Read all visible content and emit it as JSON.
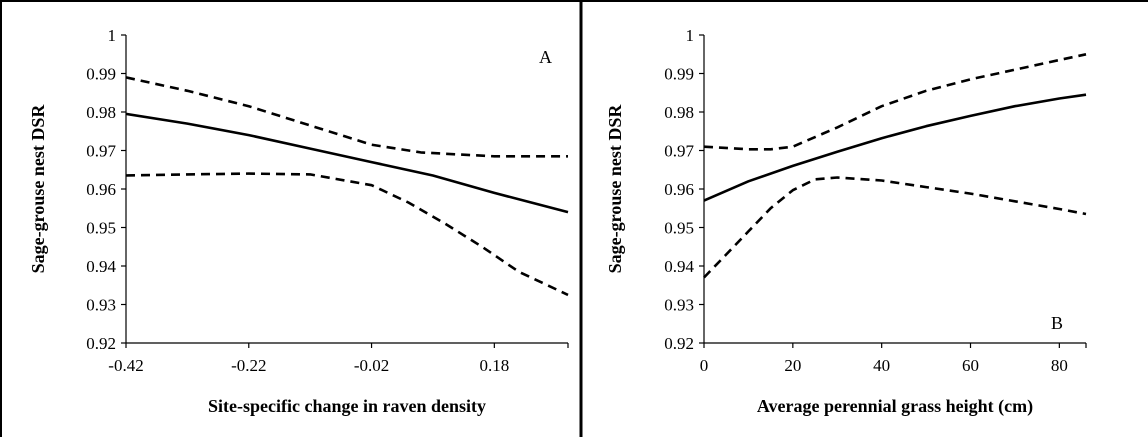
{
  "chart_data": [
    {
      "type": "line",
      "panel_label": "A",
      "xlabel": "Site-specific change in raven density",
      "ylabel": "Sage-grouse nest DSR",
      "xlim": [
        -0.42,
        0.3
      ],
      "ylim": [
        0.92,
        1.0
      ],
      "xticks": [
        -0.42,
        -0.22,
        -0.02,
        0.18
      ],
      "xtick_labels": [
        "-0.42",
        "-0.22",
        "-0.02",
        "0.18"
      ],
      "yticks": [
        0.92,
        0.93,
        0.94,
        0.95,
        0.96,
        0.97,
        0.98,
        0.99,
        1.0
      ],
      "ytick_labels": [
        "0.92",
        "0.93",
        "0.94",
        "0.95",
        "0.96",
        "0.97",
        "0.98",
        "0.99",
        "1"
      ],
      "grid": false,
      "legend": "none",
      "series": [
        {
          "role": "estimate",
          "style": "solid",
          "x": [
            -0.42,
            -0.32,
            -0.22,
            -0.12,
            -0.02,
            0.08,
            0.18,
            0.24,
            0.3
          ],
          "y": [
            0.9795,
            0.977,
            0.974,
            0.9705,
            0.967,
            0.9635,
            0.959,
            0.9565,
            0.954
          ]
        },
        {
          "role": "upper_ci",
          "style": "dashed",
          "x": [
            -0.42,
            -0.32,
            -0.22,
            -0.12,
            -0.02,
            0.06,
            0.12,
            0.18,
            0.24,
            0.3
          ],
          "y": [
            0.989,
            0.9855,
            0.9815,
            0.9765,
            0.9715,
            0.9695,
            0.969,
            0.9685,
            0.9685,
            0.9685
          ]
        },
        {
          "role": "lower_ci",
          "style": "dashed",
          "x": [
            -0.42,
            -0.32,
            -0.22,
            -0.12,
            -0.02,
            0.04,
            0.1,
            0.16,
            0.22,
            0.3
          ],
          "y": [
            0.9635,
            0.9638,
            0.964,
            0.9638,
            0.961,
            0.9565,
            0.951,
            0.945,
            0.9385,
            0.9325
          ]
        }
      ]
    },
    {
      "type": "line",
      "panel_label": "B",
      "xlabel": "Average perennial grass height (cm)",
      "ylabel": "Sage-grouse nest DSR",
      "xlim": [
        0,
        86
      ],
      "ylim": [
        0.92,
        1.0
      ],
      "xticks": [
        0,
        20,
        40,
        60,
        80
      ],
      "xtick_labels": [
        "0",
        "20",
        "40",
        "60",
        "80"
      ],
      "yticks": [
        0.92,
        0.93,
        0.94,
        0.95,
        0.96,
        0.97,
        0.98,
        0.99,
        1.0
      ],
      "ytick_labels": [
        "0.92",
        "0.93",
        "0.94",
        "0.95",
        "0.96",
        "0.97",
        "0.98",
        "0.99",
        "1"
      ],
      "grid": false,
      "legend": "none",
      "series": [
        {
          "role": "estimate",
          "style": "solid",
          "x": [
            0,
            10,
            20,
            30,
            40,
            50,
            60,
            70,
            80,
            86
          ],
          "y": [
            0.957,
            0.962,
            0.966,
            0.9697,
            0.9732,
            0.9763,
            0.979,
            0.9815,
            0.9835,
            0.9845
          ]
        },
        {
          "role": "upper_ci",
          "style": "dashed",
          "x": [
            0,
            10,
            15,
            20,
            30,
            40,
            50,
            60,
            70,
            80,
            86
          ],
          "y": [
            0.971,
            0.9703,
            0.9703,
            0.971,
            0.976,
            0.9815,
            0.9855,
            0.9885,
            0.991,
            0.9935,
            0.995
          ]
        },
        {
          "role": "lower_ci",
          "style": "dashed",
          "x": [
            0,
            5,
            10,
            15,
            20,
            25,
            30,
            40,
            50,
            60,
            70,
            80,
            86
          ],
          "y": [
            0.937,
            0.943,
            0.949,
            0.955,
            0.9597,
            0.9625,
            0.963,
            0.9622,
            0.9605,
            0.9588,
            0.9568,
            0.9548,
            0.9535
          ]
        }
      ]
    }
  ]
}
